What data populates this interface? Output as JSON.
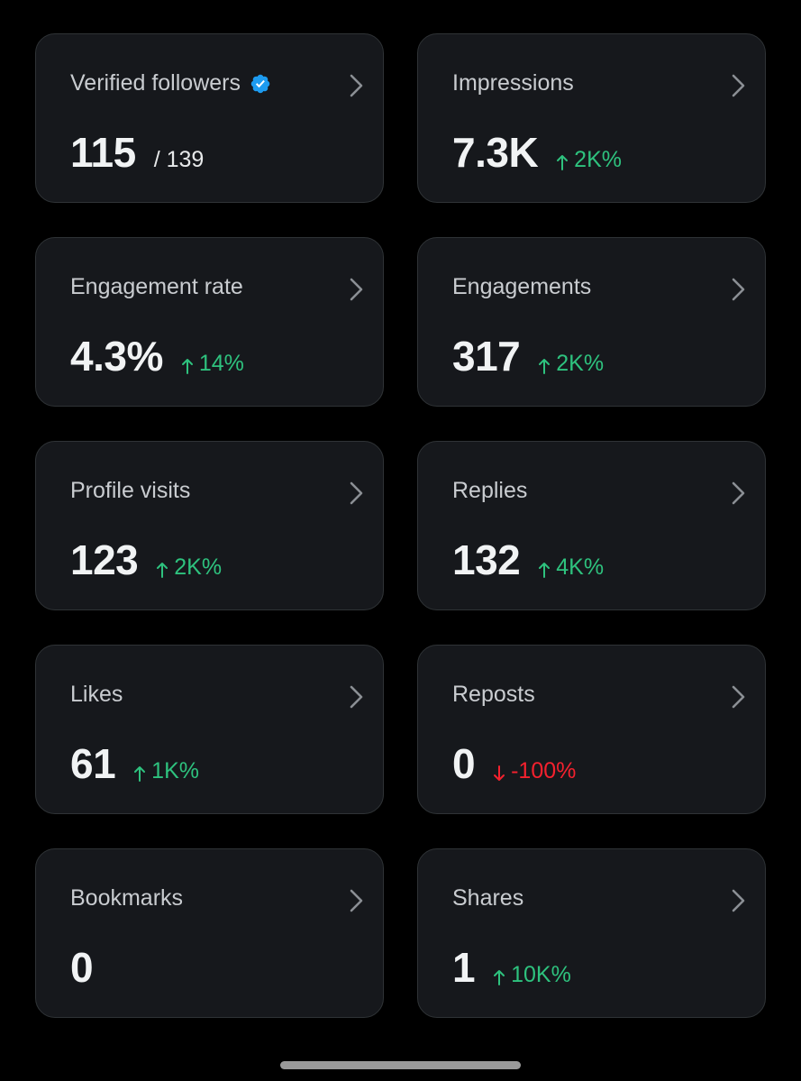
{
  "colors": {
    "background": "#000000",
    "card_background": "#16181c",
    "card_border": "#2f3336",
    "positive": "#2ec27e",
    "negative": "#f4212e",
    "verified_badge": "#1d9bf0"
  },
  "cards": [
    {
      "title": "Verified followers",
      "value": "115",
      "total": "/ 139",
      "verified_icon": "verified-badge-icon"
    },
    {
      "title": "Impressions",
      "value": "7.3K",
      "delta": "2K%",
      "direction": "up"
    },
    {
      "title": "Engagement rate",
      "value": "4.3%",
      "delta": "14%",
      "direction": "up"
    },
    {
      "title": "Engagements",
      "value": "317",
      "delta": "2K%",
      "direction": "up"
    },
    {
      "title": "Profile visits",
      "value": "123",
      "delta": "2K%",
      "direction": "up"
    },
    {
      "title": "Replies",
      "value": "132",
      "delta": "4K%",
      "direction": "up"
    },
    {
      "title": "Likes",
      "value": "61",
      "delta": "1K%",
      "direction": "up"
    },
    {
      "title": "Reposts",
      "value": "0",
      "delta": "-100%",
      "direction": "down"
    },
    {
      "title": "Bookmarks",
      "value": "0"
    },
    {
      "title": "Shares",
      "value": "1",
      "delta": "10K%",
      "direction": "up"
    }
  ]
}
